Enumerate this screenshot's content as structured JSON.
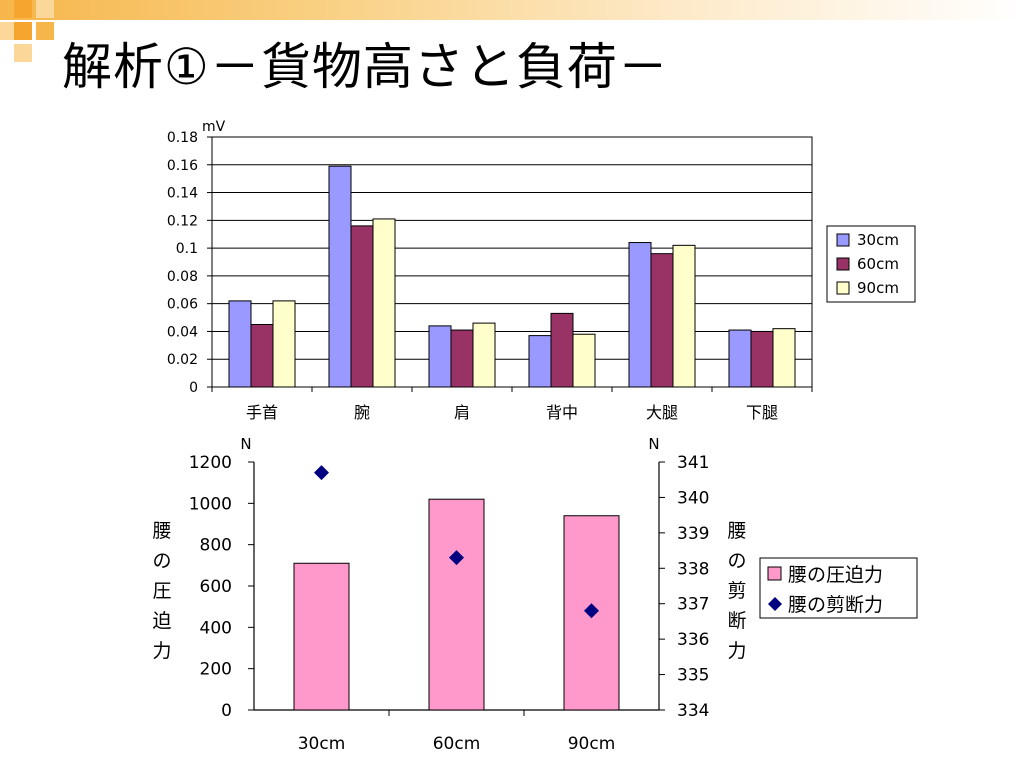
{
  "slide": {
    "title": "解析①－貨物高さと負荷－"
  },
  "chart_data": [
    {
      "type": "bar",
      "unit_label": "mV",
      "categories": [
        "手首",
        "腕",
        "肩",
        "背中",
        "大腿",
        "下腿"
      ],
      "series": [
        {
          "name": "30cm",
          "color": "#9999ff",
          "values": [
            0.062,
            0.159,
            0.044,
            0.037,
            0.104,
            0.041
          ]
        },
        {
          "name": "60cm",
          "color": "#993366",
          "values": [
            0.045,
            0.116,
            0.041,
            0.053,
            0.096,
            0.04
          ]
        },
        {
          "name": "90cm",
          "color": "#ffffcc",
          "values": [
            0.062,
            0.121,
            0.046,
            0.038,
            0.102,
            0.042
          ]
        }
      ],
      "ylim": [
        0,
        0.18
      ],
      "yticks": [
        "0",
        "0.02",
        "0.04",
        "0.06",
        "0.08",
        "0.1",
        "0.12",
        "0.14",
        "0.16",
        "0.18"
      ],
      "grid": true,
      "legend_position": "right"
    },
    {
      "type": "bar",
      "categories": [
        "30cm",
        "60cm",
        "90cm"
      ],
      "left_axis": {
        "unit": "N",
        "label": "腰の圧迫力",
        "ylim": [
          0,
          1200
        ],
        "ticks": [
          "0",
          "200",
          "400",
          "600",
          "800",
          "1000",
          "1200"
        ]
      },
      "right_axis": {
        "unit": "N",
        "label": "腰の剪断力",
        "ylim": [
          334,
          341
        ],
        "ticks": [
          "334",
          "335",
          "336",
          "337",
          "338",
          "339",
          "340",
          "341"
        ]
      },
      "series": [
        {
          "name": "腰の圧迫力",
          "type": "bar",
          "axis": "left",
          "color": "#ff99cc",
          "values": [
            710,
            1020,
            940
          ]
        },
        {
          "name": "腰の剪断力",
          "type": "scatter",
          "axis": "right",
          "color": "#000080",
          "values": [
            340.7,
            338.3,
            336.8
          ]
        }
      ],
      "grid": false,
      "legend_position": "right"
    }
  ]
}
